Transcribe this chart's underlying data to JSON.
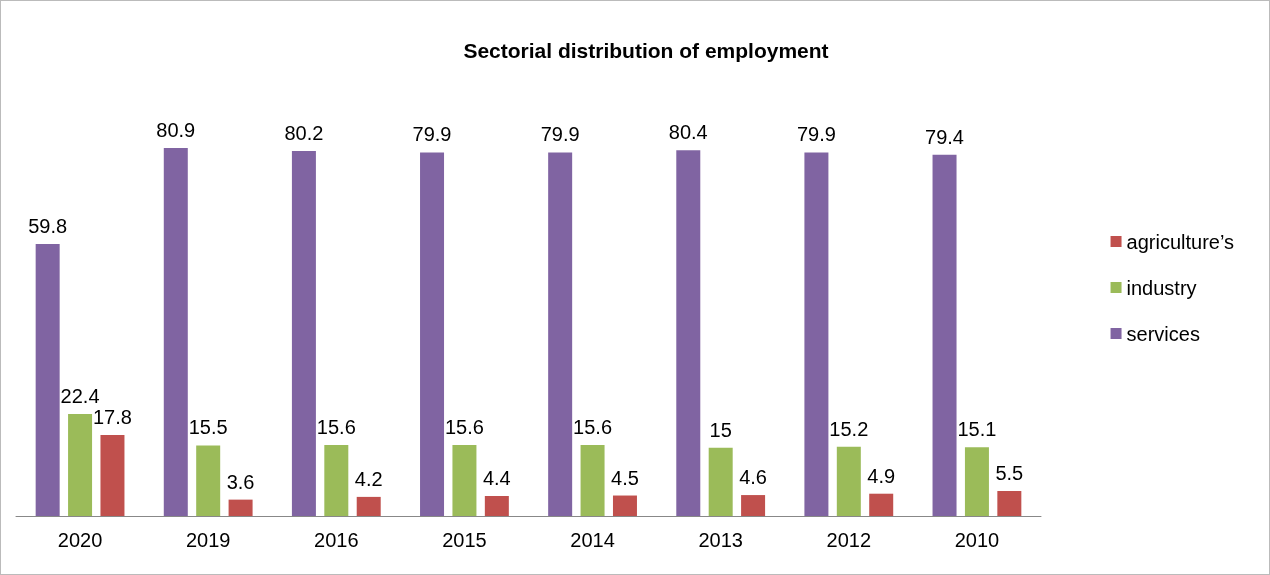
{
  "chart_data": {
    "type": "bar",
    "title": "Sectorial distribution of employment",
    "categories": [
      "2020",
      "2019",
      "2016",
      "2015",
      "2014",
      "2013",
      "2012",
      "2010"
    ],
    "series": [
      {
        "name": "services",
        "color": "#8064a2",
        "values": [
          59.8,
          80.9,
          80.2,
          79.9,
          79.9,
          80.4,
          79.9,
          79.4
        ]
      },
      {
        "name": "industry",
        "color": "#9bbb59",
        "values": [
          22.4,
          15.5,
          15.6,
          15.6,
          15.6,
          15,
          15.2,
          15.1
        ]
      },
      {
        "name": "agriculture’s",
        "color": "#c0504d",
        "values": [
          17.8,
          3.6,
          4.2,
          4.4,
          4.5,
          4.6,
          4.9,
          5.5
        ]
      }
    ],
    "data_labels": true,
    "legend": "right"
  }
}
